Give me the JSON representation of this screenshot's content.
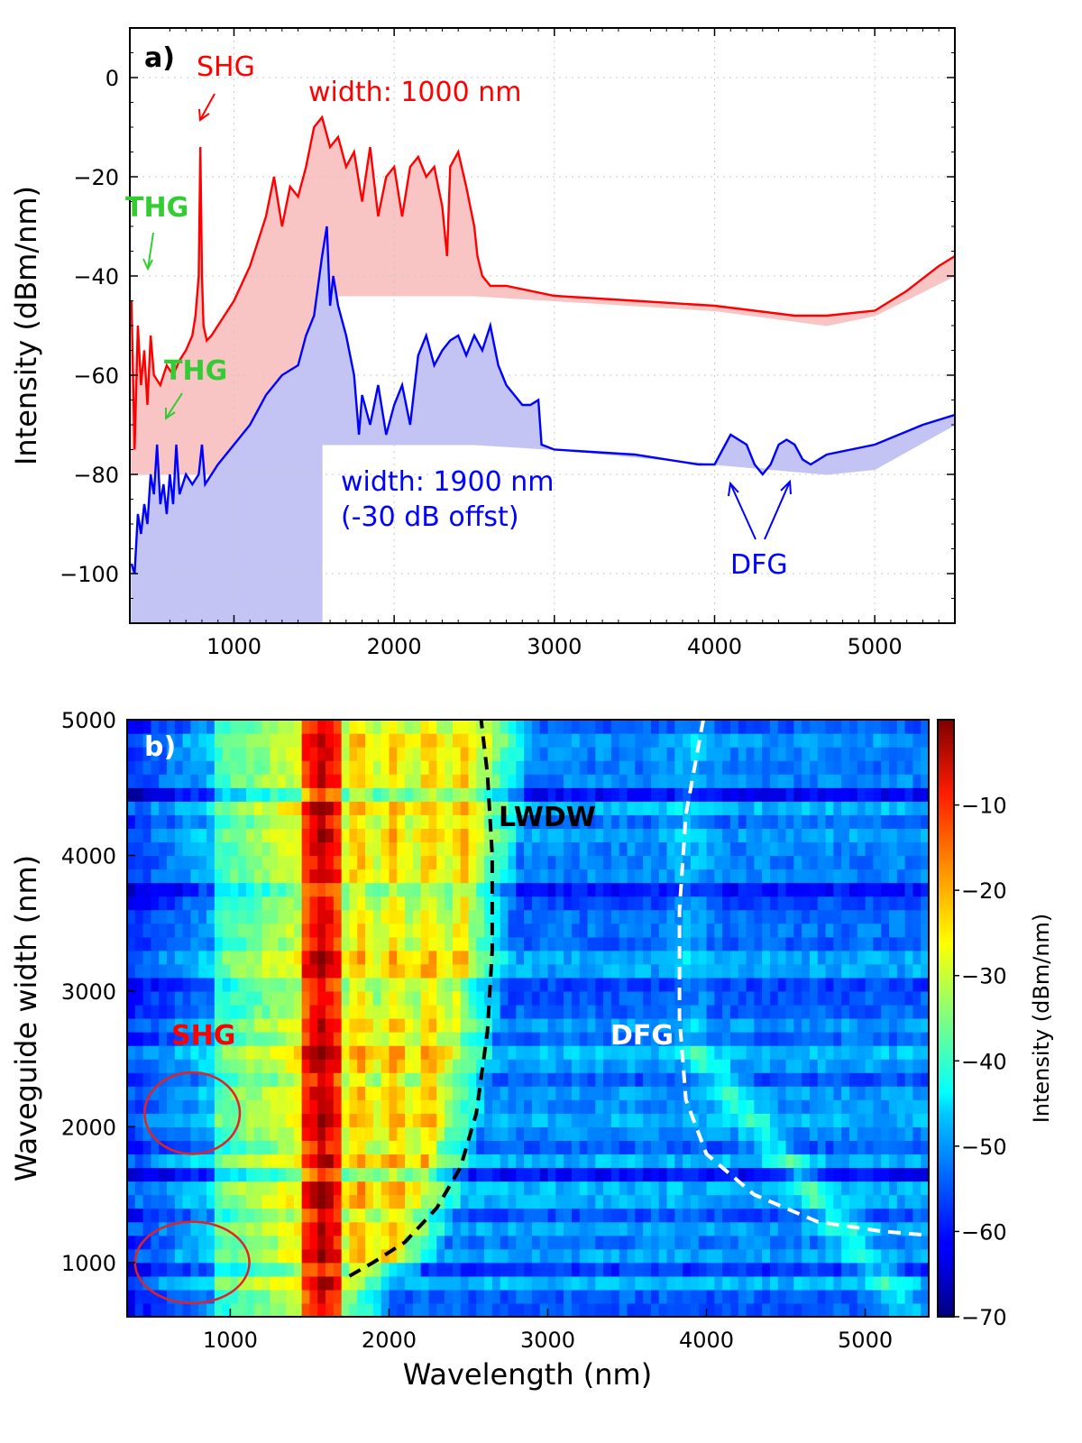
{
  "colors": {
    "red": "#ff0000",
    "red_fill": "#f8c4c4",
    "blue": "#0000ff",
    "blue_fill": "#c4c4f4",
    "green": "#33cc33",
    "black": "#000000",
    "white": "#ffffff"
  },
  "chart_data": [
    {
      "panel_label": "a)",
      "type": "line",
      "xlabel": "",
      "ylabel": "Intensity (dBm/nm)",
      "xlim": [
        350,
        5500
      ],
      "ylim": [
        -110,
        10
      ],
      "xticks": [
        1000,
        2000,
        3000,
        4000,
        5000
      ],
      "yticks": [
        0,
        -20,
        -40,
        -60,
        -80,
        -100
      ],
      "xtick_labels": [
        "1000",
        "2000",
        "3000",
        "4000",
        "5000"
      ],
      "ytick_labels": [
        "0",
        "−20",
        "−40",
        "−60",
        "−80",
        "−100"
      ],
      "series": [
        {
          "name": "width: 1000 nm",
          "color": "#ff0000",
          "x": [
            360,
            380,
            400,
            420,
            440,
            460,
            480,
            500,
            540,
            580,
            620,
            660,
            700,
            740,
            760,
            780,
            790,
            800,
            810,
            830,
            860,
            900,
            1000,
            1100,
            1200,
            1250,
            1300,
            1350,
            1400,
            1450,
            1500,
            1550,
            1600,
            1650,
            1700,
            1750,
            1800,
            1850,
            1900,
            1950,
            2000,
            2050,
            2100,
            2150,
            2200,
            2250,
            2300,
            2330,
            2350,
            2400,
            2450,
            2500,
            2520,
            2550,
            2600,
            2700,
            3000,
            3500,
            4000,
            4500,
            4700,
            5000,
            5200,
            5400,
            5500
          ],
          "y": [
            -45,
            -75,
            -50,
            -62,
            -55,
            -66,
            -52,
            -60,
            -62,
            -58,
            -60,
            -57,
            -55,
            -52,
            -48,
            -40,
            -14,
            -40,
            -50,
            -53,
            -52,
            -50,
            -45,
            -38,
            -28,
            -20,
            -30,
            -22,
            -24,
            -18,
            -10,
            -8,
            -14,
            -12,
            -18,
            -15,
            -25,
            -14,
            -28,
            -20,
            -18,
            -28,
            -18,
            -16,
            -20,
            -18,
            -26,
            -36,
            -18,
            -15,
            -22,
            -30,
            -36,
            -40,
            -42,
            -42,
            -44,
            -45,
            -46,
            -48,
            -48,
            -47,
            -43,
            -38,
            -36
          ],
          "baseline_x": [
            360,
            1450,
            1550,
            2500,
            3000,
            4000,
            4700,
            5000,
            5500
          ],
          "baseline_y": [
            -80,
            -80,
            -44,
            -44,
            -45,
            -47,
            -50,
            -48,
            -40
          ]
        },
        {
          "name": "width: 1900 nm",
          "color": "#0000ff",
          "x": [
            360,
            380,
            400,
            420,
            440,
            460,
            480,
            500,
            520,
            540,
            560,
            580,
            600,
            620,
            640,
            660,
            680,
            700,
            740,
            780,
            800,
            820,
            860,
            900,
            1000,
            1100,
            1200,
            1300,
            1400,
            1450,
            1500,
            1550,
            1580,
            1600,
            1620,
            1650,
            1700,
            1750,
            1780,
            1800,
            1850,
            1900,
            1950,
            2000,
            2050,
            2100,
            2150,
            2200,
            2250,
            2300,
            2350,
            2400,
            2450,
            2500,
            2550,
            2600,
            2650,
            2700,
            2750,
            2800,
            2850,
            2900,
            2920,
            3000,
            3500,
            3900,
            4000,
            4100,
            4200,
            4250,
            4300,
            4350,
            4400,
            4450,
            4500,
            4550,
            4600,
            4700,
            5000,
            5300,
            5500
          ],
          "y": [
            -98,
            -100,
            -88,
            -92,
            -86,
            -90,
            -80,
            -84,
            -74,
            -86,
            -82,
            -88,
            -80,
            -86,
            -74,
            -84,
            -82,
            -80,
            -82,
            -80,
            -74,
            -82,
            -80,
            -78,
            -74,
            -70,
            -64,
            -60,
            -58,
            -52,
            -48,
            -36,
            -30,
            -46,
            -40,
            -46,
            -52,
            -60,
            -72,
            -64,
            -70,
            -62,
            -72,
            -66,
            -62,
            -70,
            -56,
            -52,
            -58,
            -55,
            -53,
            -52,
            -56,
            -52,
            -55,
            -50,
            -58,
            -62,
            -64,
            -66,
            -66,
            -65,
            -74,
            -75,
            -76,
            -78,
            -78,
            -72,
            -74,
            -78,
            -80,
            -78,
            -74,
            -73,
            -74,
            -77,
            -78,
            -76,
            -74,
            -70,
            -68
          ],
          "baseline_x": [
            360,
            1550,
            1550,
            1580,
            2500,
            3000,
            4000,
            4700,
            5000,
            5500
          ],
          "baseline_y": [
            -110,
            -110,
            -74,
            -74,
            -74,
            -75,
            -78,
            -80,
            -79,
            -70
          ]
        }
      ],
      "annotations": {
        "shg": "SHG",
        "thg_top": "THG",
        "thg_bottom": "THG",
        "width_1000": "width: 1000 nm",
        "width_1900_line1": "width: 1900 nm",
        "width_1900_line2": "(-30 dB offst)",
        "dfg": "DFG"
      }
    },
    {
      "panel_label": "b)",
      "type": "heatmap",
      "xlabel": "Wavelength (nm)",
      "ylabel": "Waveguide width (nm)",
      "xlim": [
        350,
        5400
      ],
      "ylim": [
        600,
        5000
      ],
      "xticks": [
        1000,
        2000,
        3000,
        4000,
        5000
      ],
      "yticks": [
        1000,
        2000,
        3000,
        4000,
        5000
      ],
      "xtick_labels": [
        "1000",
        "2000",
        "3000",
        "4000",
        "5000"
      ],
      "ytick_labels": [
        "1000",
        "2000",
        "3000",
        "4000",
        "5000"
      ],
      "colorbar": {
        "label": "Intensity (dBm/nm)",
        "vmin": -70,
        "vmax": 0,
        "ticks": [
          -10,
          -20,
          -30,
          -40,
          -50,
          -60,
          -70
        ],
        "tick_labels": [
          "−10",
          "−20",
          "−30",
          "−40",
          "−50",
          "−60",
          "−70"
        ]
      },
      "lwdw_curve": {
        "x": [
          1750,
          1900,
          2100,
          2300,
          2450,
          2550,
          2620,
          2650,
          2650,
          2620,
          2580
        ],
        "y": [
          900,
          1000,
          1150,
          1400,
          1700,
          2100,
          2700,
          3300,
          4000,
          4600,
          5000
        ]
      },
      "dfg_curve": {
        "x": [
          3980,
          3870,
          3830,
          3830,
          3870,
          4000,
          4300,
          4700,
          5100,
          5400
        ],
        "y": [
          5000,
          4300,
          3600,
          2800,
          2200,
          1800,
          1500,
          1300,
          1230,
          1200
        ]
      },
      "shg_circles": [
        {
          "cx": 760,
          "cy": 2100,
          "rx": 300,
          "ry": 300
        },
        {
          "cx": 760,
          "cy": 1000,
          "rx": 360,
          "ry": 300
        }
      ],
      "annotations": {
        "shg": "SHG",
        "lwdw": "LWDW",
        "dfg": "DFG"
      }
    }
  ]
}
